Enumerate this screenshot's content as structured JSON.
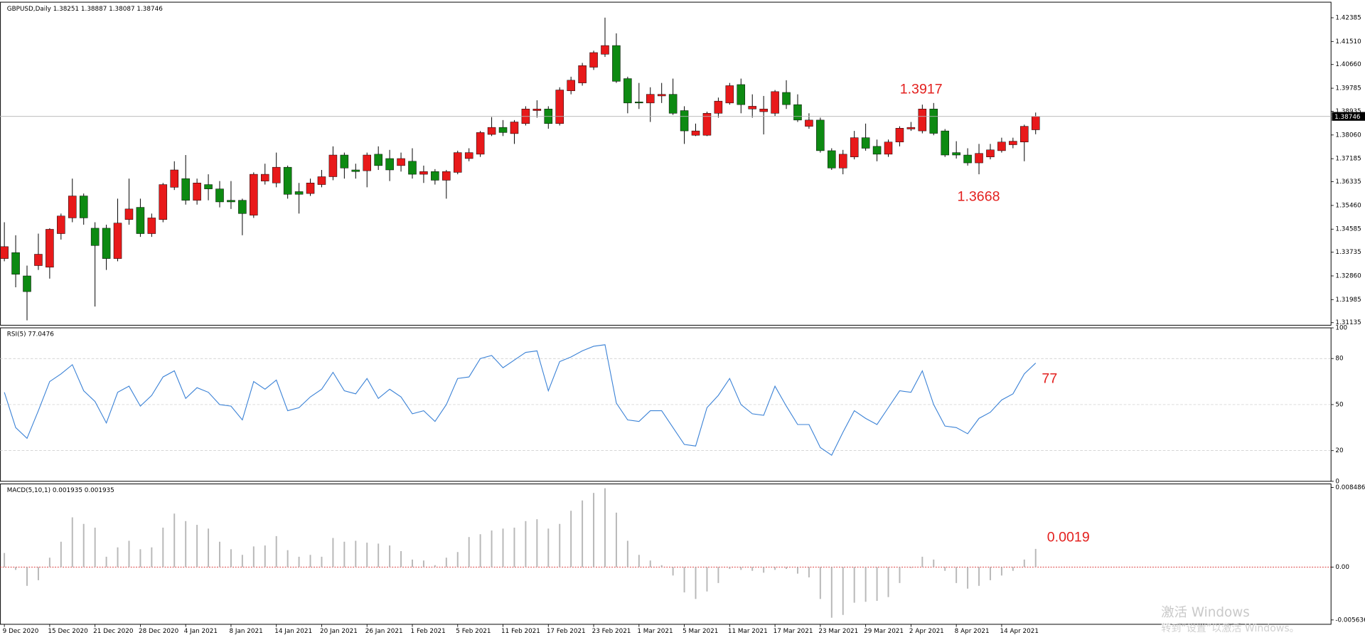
{
  "chart_data": [
    {
      "type": "candlestick",
      "title": "GBPUSD,Daily  1.38251 1.38887 1.38087 1.38746",
      "categories": [
        "9 Dec 2020",
        null,
        null,
        null,
        "15 Dec 2020",
        null,
        null,
        null,
        "21 Dec 2020",
        null,
        null,
        null,
        "28 Dec 2020",
        null,
        null,
        null,
        "4 Jan 2021",
        null,
        null,
        null,
        "8 Jan 2021",
        null,
        null,
        null,
        "14 Jan 2021",
        null,
        null,
        null,
        "20 Jan 2021",
        null,
        null,
        null,
        "26 Jan 2021",
        null,
        null,
        null,
        "1 Feb 2021",
        null,
        null,
        null,
        "5 Feb 2021",
        null,
        null,
        null,
        "11 Feb 2021",
        null,
        null,
        null,
        "17 Feb 2021",
        null,
        null,
        null,
        "23 Feb 2021",
        null,
        null,
        null,
        "1 Mar 2021",
        null,
        null,
        null,
        "5 Mar 2021",
        null,
        null,
        null,
        "11 Mar 2021",
        null,
        null,
        null,
        "17 Mar 2021",
        null,
        null,
        null,
        "23 Mar 2021",
        null,
        null,
        null,
        "29 Mar 2021",
        null,
        null,
        null,
        "2 Apr 2021",
        null,
        null,
        null,
        "8 Apr 2021",
        null,
        null,
        null,
        "14 Apr 2021",
        null,
        null,
        null
      ],
      "open": [
        1.335,
        1.3372,
        1.3286,
        1.3324,
        1.3318,
        1.3442,
        1.35,
        1.3581,
        1.3462,
        1.3462,
        1.335,
        1.3494,
        1.3539,
        1.3442,
        1.3494,
        1.3613,
        1.3645,
        1.3565,
        1.3623,
        1.3607,
        1.3565,
        1.3565,
        1.351,
        1.3636,
        1.3629,
        1.3687,
        1.3597,
        1.359,
        1.3623,
        1.3652,
        1.3732,
        1.3677,
        1.3674,
        1.3735,
        1.3719,
        1.3693,
        1.3709,
        1.3661,
        1.3671,
        1.3639,
        1.3668,
        1.3719,
        1.3735,
        1.3808,
        1.3834,
        1.3811,
        1.3848,
        1.3896,
        1.3902,
        1.3848,
        1.3969,
        1.3998,
        1.4056,
        1.4104,
        1.4136,
        1.4014,
        1.3928,
        1.3924,
        1.395,
        1.3956,
        1.3896,
        1.3805,
        1.3805,
        1.3886,
        1.3924,
        1.3992,
        1.3902,
        1.3892,
        1.3886,
        1.3963,
        1.3918,
        1.3838,
        1.3861,
        1.3748,
        1.3684,
        1.3725,
        1.3796,
        1.3764,
        1.3735,
        1.378,
        1.3828,
        1.3821,
        1.3902,
        1.3821,
        1.3741,
        1.3732,
        1.3703,
        1.3725,
        1.3748,
        1.377,
        1.378,
        1.38251
      ],
      "high": [
        1.3484,
        1.3436,
        1.3324,
        1.3442,
        1.3462,
        1.3516,
        1.3645,
        1.359,
        1.3484,
        1.3475,
        1.3571,
        1.3645,
        1.3571,
        1.3516,
        1.3629,
        1.3709,
        1.3732,
        1.3645,
        1.3661,
        1.3636,
        1.3636,
        1.3571,
        1.3668,
        1.37,
        1.3741,
        1.3693,
        1.3629,
        1.3645,
        1.3677,
        1.3764,
        1.3741,
        1.37,
        1.3741,
        1.3764,
        1.3751,
        1.3741,
        1.3757,
        1.3693,
        1.368,
        1.3677,
        1.3748,
        1.3757,
        1.3821,
        1.3872,
        1.3861,
        1.3861,
        1.3912,
        1.3934,
        1.3912,
        1.3982,
        1.4021,
        1.4072,
        1.4117,
        1.4239,
        1.4181,
        1.4021,
        1.3998,
        1.3982,
        1.3998,
        1.4014,
        1.3912,
        1.3848,
        1.3892,
        1.3944,
        1.3998,
        1.4014,
        1.3956,
        1.395,
        1.3972,
        1.4008,
        1.3956,
        1.3886,
        1.387,
        1.3757,
        1.3751,
        1.3821,
        1.3848,
        1.3789,
        1.3789,
        1.3838,
        1.3854,
        1.3918,
        1.3924,
        1.3828,
        1.3783,
        1.3757,
        1.3773,
        1.3773,
        1.3796,
        1.3796,
        1.3844,
        1.38887
      ],
      "low": [
        1.334,
        1.3244,
        1.3122,
        1.3308,
        1.3276,
        1.342,
        1.3484,
        1.3475,
        1.3173,
        1.3308,
        1.334,
        1.3475,
        1.343,
        1.343,
        1.3484,
        1.3603,
        1.3549,
        1.3549,
        1.3565,
        1.3539,
        1.3533,
        1.3436,
        1.35,
        1.3623,
        1.3613,
        1.3571,
        1.3516,
        1.3581,
        1.3613,
        1.3639,
        1.3645,
        1.3645,
        1.3613,
        1.3677,
        1.3636,
        1.3671,
        1.3645,
        1.3629,
        1.3623,
        1.3571,
        1.3661,
        1.3709,
        1.3725,
        1.3802,
        1.3802,
        1.3773,
        1.3841,
        1.387,
        1.3829,
        1.3841,
        1.3956,
        1.3988,
        1.4046,
        1.4094,
        1.3998,
        1.3886,
        1.3902,
        1.3854,
        1.3924,
        1.388,
        1.3773,
        1.3802,
        1.3802,
        1.387,
        1.3918,
        1.3886,
        1.387,
        1.3808,
        1.3876,
        1.3902,
        1.3854,
        1.3829,
        1.3741,
        1.3677,
        1.3661,
        1.3716,
        1.3748,
        1.3709,
        1.3725,
        1.3764,
        1.3821,
        1.3812,
        1.3805,
        1.3725,
        1.3719,
        1.3693,
        1.3661,
        1.3716,
        1.3741,
        1.3757,
        1.3709,
        1.38087
      ],
      "close": [
        1.3394,
        1.3292,
        1.3228,
        1.3366,
        1.3458,
        1.3507,
        1.3581,
        1.35,
        1.3398,
        1.335,
        1.3481,
        1.3533,
        1.3442,
        1.35,
        1.3623,
        1.3677,
        1.3565,
        1.3629,
        1.3607,
        1.3559,
        1.3559,
        1.3516,
        1.3661,
        1.3661,
        1.3687,
        1.3587,
        1.3587,
        1.3629,
        1.3652,
        1.3732,
        1.3684,
        1.3671,
        1.3732,
        1.3693,
        1.3677,
        1.3719,
        1.3661,
        1.3671,
        1.3639,
        1.3671,
        1.3741,
        1.3741,
        1.3815,
        1.3834,
        1.3815,
        1.3854,
        1.3902,
        1.3902,
        1.3848,
        1.3972,
        1.4008,
        1.4062,
        1.411,
        1.4136,
        1.4004,
        1.3924,
        1.3924,
        1.3956,
        1.3956,
        1.3886,
        1.3821,
        1.3821,
        1.3886,
        1.3931,
        1.3988,
        1.3918,
        1.3912,
        1.3902,
        1.3966,
        1.3918,
        1.3861,
        1.3861,
        1.3748,
        1.3684,
        1.3735,
        1.3796,
        1.3757,
        1.3735,
        1.378,
        1.3831,
        1.3834,
        1.3902,
        1.3812,
        1.3732,
        1.3732,
        1.3703,
        1.3738,
        1.3751,
        1.378,
        1.3783,
        1.3838,
        1.38746
      ],
      "up_color": "#e8191a",
      "down_color": "#0d8a12",
      "price_line_color": "#b4b4b4",
      "ylim": [
        1.3104,
        1.4296
      ],
      "yticks": [
        1.42385,
        {
          "value": 1.4151,
          "label": "1.41510"
        },
        {
          "value": 1.4066,
          "label": "1.40660"
        },
        1.39785,
        1.38935,
        {
          "value": 1.3806,
          "label": "1.38060"
        },
        1.37185,
        1.36335,
        {
          "value": 1.3546,
          "label": "1.35460"
        },
        1.34585,
        1.33735,
        {
          "value": 1.3286,
          "label": "1.32860"
        },
        1.31985,
        1.31135
      ],
      "grid": false,
      "annotations": [
        {
          "text": "1.3917"
        },
        {
          "text": "1.3668"
        }
      ]
    },
    {
      "type": "line",
      "title": "RSI(5) 77.0476",
      "values": [
        58,
        35,
        28,
        46,
        65,
        70,
        76,
        59,
        52,
        38,
        58,
        62,
        49,
        56,
        68,
        72,
        54,
        61,
        58,
        50,
        49,
        40,
        65,
        60,
        66,
        46,
        48,
        55,
        60,
        71,
        59,
        57,
        67,
        54,
        60,
        55,
        44,
        46,
        39,
        50,
        67,
        68,
        80,
        82,
        74,
        79,
        84,
        85,
        59,
        78,
        81,
        85,
        88,
        89,
        51,
        40,
        39,
        46,
        46,
        35,
        24,
        23,
        48,
        56,
        67,
        50,
        44,
        43,
        62,
        49,
        37,
        37,
        22,
        17,
        32,
        46,
        41,
        37,
        48,
        59,
        58,
        72,
        50,
        36,
        35,
        31,
        41,
        45,
        53,
        57,
        70,
        77.0476
      ],
      "color": "#3b82d6",
      "ylim": [
        0,
        100
      ],
      "yticks": [
        100,
        80,
        50,
        20,
        0
      ],
      "grid": true,
      "annotations": [
        {
          "text": "77"
        }
      ]
    },
    {
      "type": "bar",
      "title": "MACD(5,10,1) 0.001935 0.001935",
      "values": [
        0.0015,
        -0.0003,
        -0.002,
        -0.0014,
        0.001,
        0.0027,
        0.0053,
        0.0046,
        0.0042,
        0.0011,
        0.0021,
        0.0028,
        0.0019,
        0.0021,
        0.0042,
        0.0057,
        0.0049,
        0.0045,
        0.0041,
        0.0027,
        0.0019,
        0.0013,
        0.0022,
        0.0023,
        0.0033,
        0.0018,
        0.0011,
        0.0013,
        0.0011,
        0.0031,
        0.0027,
        0.0028,
        0.0026,
        0.0025,
        0.0023,
        0.0017,
        0.0008,
        0.0007,
        0.0002,
        0.001,
        0.0016,
        0.0032,
        0.0035,
        0.0039,
        0.0041,
        0.0042,
        0.0049,
        0.0051,
        0.0041,
        0.0046,
        0.006,
        0.0071,
        0.0079,
        0.0084,
        0.0058,
        0.0028,
        0.0013,
        0.0007,
        0.0002,
        -0.0009,
        -0.0027,
        -0.0034,
        -0.0026,
        -0.0017,
        -0.0002,
        -0.0003,
        -0.0004,
        -0.0006,
        -0.0003,
        -0.0002,
        -0.0007,
        -0.0011,
        -0.0034,
        -0.0054,
        -0.0051,
        -0.0038,
        -0.0037,
        -0.0036,
        -0.0032,
        -0.0017,
        -0.0001,
        0.0011,
        0.0008,
        -0.0004,
        -0.0017,
        -0.0023,
        -0.002,
        -0.0014,
        -0.0009,
        -0.0004,
        0.0008,
        0.001935
      ],
      "color": "#b8b8b8",
      "zero_line_color": "#d62020",
      "ylim": [
        -0.0061,
        0.00886
      ],
      "yticks": [
        0.008486,
        {
          "value": 0,
          "label": "0.00"
        },
        -0.005636
      ],
      "grid": false,
      "annotations": [
        {
          "text": "0.0019"
        }
      ]
    }
  ],
  "watermark": [
    "激活 Windows",
    "转到“设置”以激活 Windows。"
  ]
}
